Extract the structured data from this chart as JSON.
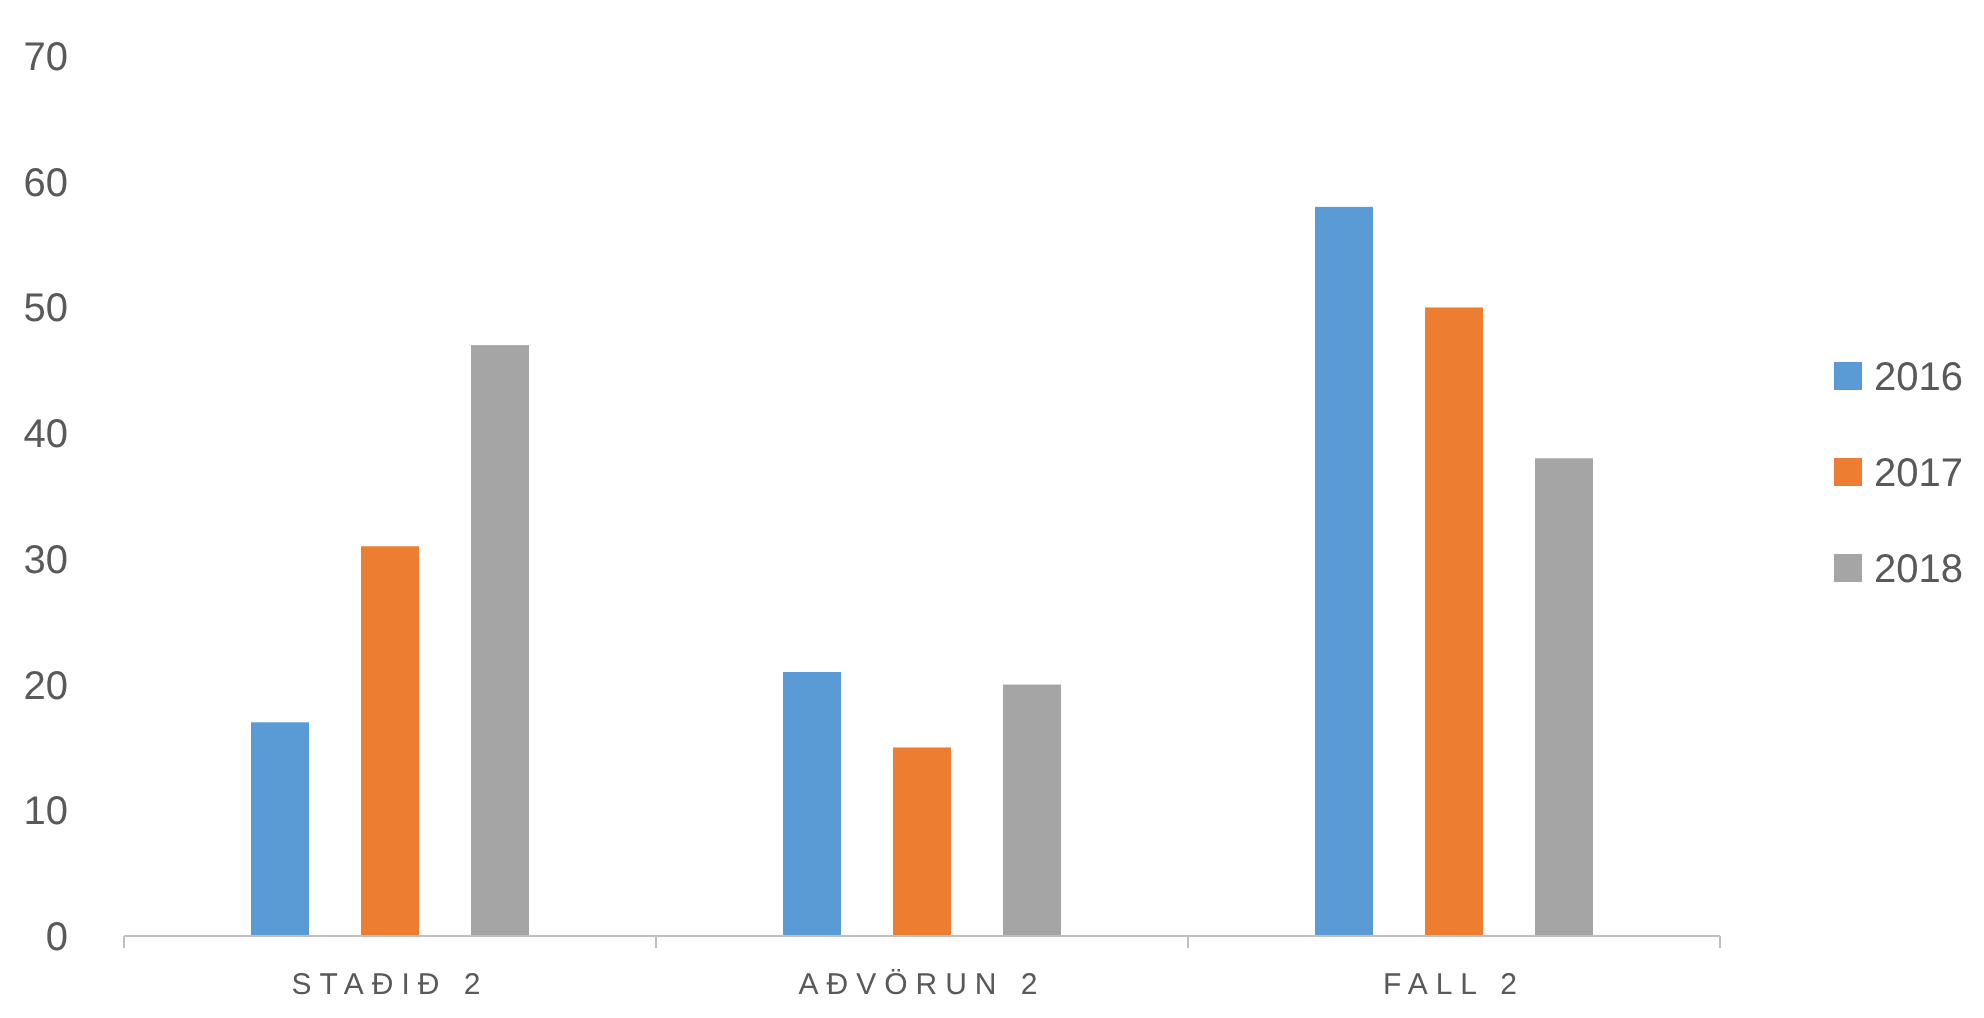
{
  "chart_data": {
    "type": "bar",
    "categories": [
      "STAÐIÐ 2",
      "AÐVÖRUN 2",
      "FALL 2"
    ],
    "series": [
      {
        "name": "2016",
        "color": "#5b9bd5",
        "values": [
          17,
          21,
          58
        ]
      },
      {
        "name": "2017",
        "color": "#ed7d31",
        "values": [
          31,
          15,
          50
        ]
      },
      {
        "name": "2018",
        "color": "#a5a5a5",
        "values": [
          47,
          20,
          38
        ]
      }
    ],
    "ylim": [
      0,
      70
    ],
    "yticks": [
      0,
      10,
      20,
      30,
      40,
      50,
      60,
      70
    ],
    "grid": false,
    "legend": "right"
  }
}
